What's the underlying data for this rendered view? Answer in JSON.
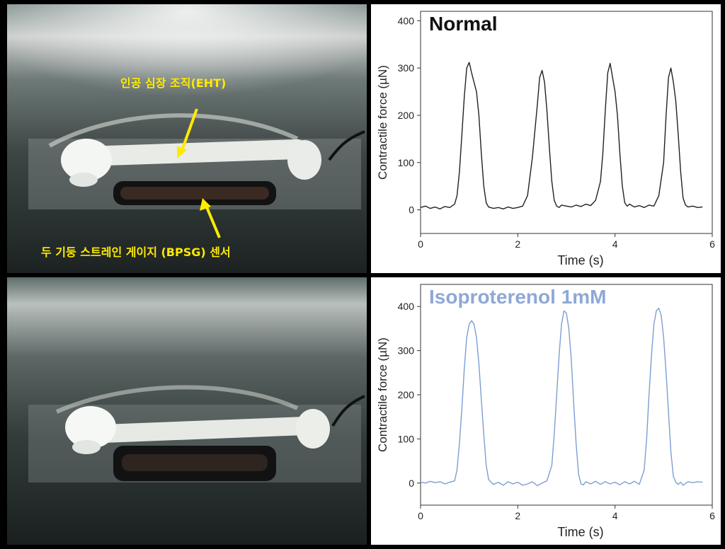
{
  "photo_top": {
    "label_eht": "인공 심장 조직(EHT)",
    "label_sensor": "두 기둥 스트레인 게이지 (BPSG) 센서",
    "label_color": "#ffea00"
  },
  "chart_data": [
    {
      "type": "line",
      "title": "Normal",
      "title_color": "#111111",
      "line_color": "#222222",
      "xlabel": "Time (s)",
      "ylabel": "Contractile force (µN)",
      "xlim": [
        0,
        6
      ],
      "ylim": [
        -50,
        420
      ],
      "xticks": [
        0,
        2,
        4,
        6
      ],
      "yticks": [
        0,
        100,
        200,
        300,
        400
      ],
      "grid": false,
      "series": [
        {
          "x": [
            0.0,
            0.1,
            0.2,
            0.3,
            0.4,
            0.5,
            0.6,
            0.7,
            0.75,
            0.8,
            0.85,
            0.9,
            0.95,
            1.0,
            1.05,
            1.1,
            1.15,
            1.2,
            1.25,
            1.3,
            1.35,
            1.4,
            1.5,
            1.6,
            1.7,
            1.8,
            1.9,
            2.0,
            2.1,
            2.2,
            2.3,
            2.4,
            2.45,
            2.5,
            2.55,
            2.6,
            2.65,
            2.7,
            2.75,
            2.8,
            2.85,
            2.9,
            3.0,
            3.1,
            3.2,
            3.3,
            3.4,
            3.5,
            3.6,
            3.7,
            3.75,
            3.8,
            3.85,
            3.9,
            3.95,
            4.0,
            4.05,
            4.1,
            4.15,
            4.2,
            4.25,
            4.3,
            4.4,
            4.5,
            4.6,
            4.7,
            4.8,
            4.9,
            5.0,
            5.05,
            5.1,
            5.15,
            5.2,
            5.25,
            5.3,
            5.35,
            5.4,
            5.45,
            5.5,
            5.6,
            5.7,
            5.8
          ],
          "y": [
            5,
            8,
            3,
            6,
            2,
            7,
            5,
            12,
            30,
            80,
            160,
            240,
            300,
            312,
            290,
            270,
            250,
            200,
            120,
            50,
            15,
            6,
            3,
            5,
            2,
            6,
            3,
            5,
            8,
            30,
            110,
            220,
            280,
            295,
            270,
            210,
            130,
            60,
            20,
            8,
            5,
            10,
            8,
            6,
            10,
            7,
            12,
            9,
            20,
            60,
            120,
            210,
            290,
            310,
            280,
            250,
            200,
            120,
            50,
            15,
            8,
            12,
            6,
            9,
            5,
            10,
            8,
            30,
            100,
            200,
            280,
            300,
            270,
            230,
            160,
            80,
            25,
            10,
            6,
            8,
            5,
            6
          ]
        }
      ]
    },
    {
      "type": "line",
      "title": "Isoproterenol 1mM",
      "title_color": "#8ea8d6",
      "line_color": "#7b9fd0",
      "xlabel": "Time (s)",
      "ylabel": "Contractile force (µN)",
      "xlim": [
        0,
        6
      ],
      "ylim": [
        -50,
        450
      ],
      "xticks": [
        0,
        2,
        4,
        6
      ],
      "yticks": [
        0,
        100,
        200,
        300,
        400
      ],
      "grid": false,
      "series": [
        {
          "x": [
            0.0,
            0.1,
            0.2,
            0.3,
            0.4,
            0.5,
            0.6,
            0.7,
            0.75,
            0.8,
            0.85,
            0.9,
            0.95,
            1.0,
            1.05,
            1.1,
            1.15,
            1.2,
            1.25,
            1.3,
            1.35,
            1.4,
            1.45,
            1.5,
            1.6,
            1.7,
            1.8,
            1.9,
            2.0,
            2.1,
            2.2,
            2.3,
            2.4,
            2.5,
            2.6,
            2.7,
            2.75,
            2.8,
            2.85,
            2.9,
            2.95,
            3.0,
            3.05,
            3.1,
            3.15,
            3.2,
            3.25,
            3.3,
            3.35,
            3.4,
            3.5,
            3.6,
            3.7,
            3.8,
            3.9,
            4.0,
            4.1,
            4.2,
            4.3,
            4.4,
            4.5,
            4.6,
            4.65,
            4.7,
            4.75,
            4.8,
            4.85,
            4.9,
            4.95,
            5.0,
            5.05,
            5.1,
            5.15,
            5.2,
            5.25,
            5.3,
            5.35,
            5.4,
            5.5,
            5.6,
            5.7,
            5.8
          ],
          "y": [
            2,
            0,
            4,
            1,
            3,
            -2,
            2,
            5,
            30,
            90,
            170,
            260,
            330,
            360,
            368,
            360,
            330,
            270,
            190,
            110,
            40,
            8,
            2,
            -3,
            2,
            -5,
            3,
            -2,
            2,
            -5,
            -2,
            3,
            -6,
            0,
            5,
            40,
            110,
            200,
            290,
            360,
            390,
            385,
            350,
            280,
            180,
            90,
            20,
            -2,
            -4,
            3,
            -2,
            4,
            -3,
            3,
            -2,
            2,
            -4,
            3,
            -2,
            4,
            -3,
            30,
            100,
            200,
            290,
            360,
            390,
            396,
            380,
            330,
            250,
            160,
            70,
            15,
            2,
            -3,
            2,
            -5,
            3,
            1,
            3,
            2
          ]
        }
      ]
    }
  ]
}
